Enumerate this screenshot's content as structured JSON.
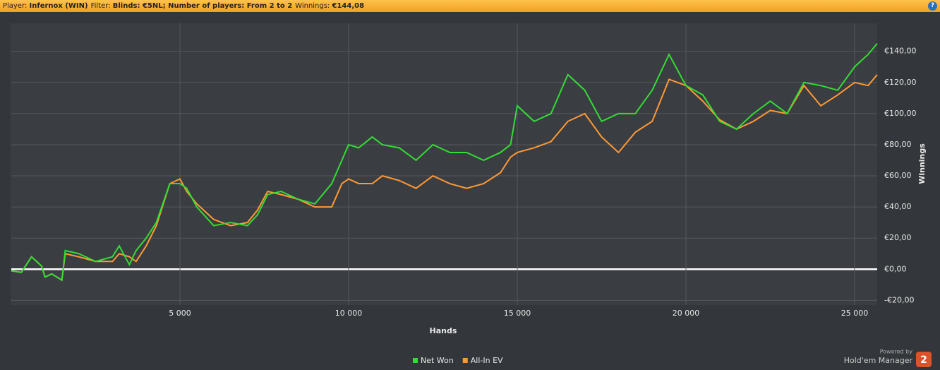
{
  "header": {
    "items": [
      {
        "label": "Player:",
        "value": "Infernox (WIN)"
      },
      {
        "label": "Filter:",
        "value": "Blinds: €5NL; Number of players: From 2 to 2"
      },
      {
        "label": "Winnings:",
        "value": "€144,08"
      }
    ]
  },
  "chart_data": {
    "type": "line",
    "x_label": "Hands",
    "y_label": "Winnings",
    "x": [
      0,
      300,
      600,
      900,
      1000,
      1200,
      1500,
      1600,
      2000,
      2500,
      3000,
      3200,
      3500,
      3700,
      4000,
      4300,
      4700,
      5000,
      5200,
      5500,
      6000,
      6500,
      7000,
      7300,
      7600,
      8000,
      8500,
      9000,
      9500,
      9800,
      10000,
      10300,
      10700,
      11000,
      11500,
      12000,
      12500,
      13000,
      13500,
      14000,
      14500,
      14800,
      15000,
      15500,
      16000,
      16500,
      17000,
      17500,
      18000,
      18500,
      19000,
      19500,
      20000,
      20500,
      21000,
      21500,
      22000,
      22500,
      23000,
      23500,
      24000,
      24500,
      25000,
      25400,
      25670
    ],
    "series": [
      {
        "name": "All-In EV",
        "color": "#ff9933",
        "values": [
          -1,
          -2,
          8,
          2,
          -5,
          -3,
          -7,
          10,
          8,
          5,
          5,
          10,
          8,
          5,
          15,
          28,
          55,
          58,
          50,
          42,
          32,
          28,
          30,
          38,
          50,
          48,
          45,
          40,
          40,
          55,
          58,
          55,
          55,
          60,
          57,
          52,
          60,
          55,
          52,
          55,
          62,
          72,
          75,
          78,
          82,
          95,
          100,
          85,
          75,
          88,
          95,
          122,
          118,
          108,
          96,
          90,
          95,
          102,
          100,
          118,
          105,
          112,
          120,
          118,
          125
        ]
      },
      {
        "name": "Net Won",
        "color": "#33dd33",
        "values": [
          -1,
          -2,
          8,
          2,
          -5,
          -3,
          -7,
          12,
          10,
          5,
          8,
          15,
          3,
          12,
          20,
          30,
          55,
          55,
          52,
          40,
          28,
          30,
          28,
          35,
          48,
          50,
          45,
          42,
          55,
          70,
          80,
          78,
          85,
          80,
          78,
          70,
          80,
          75,
          75,
          70,
          75,
          80,
          105,
          95,
          100,
          125,
          115,
          95,
          100,
          100,
          115,
          138,
          118,
          112,
          95,
          90,
          100,
          108,
          100,
          120,
          118,
          115,
          130,
          138,
          145
        ]
      }
    ],
    "xlim": [
      0,
      25670
    ],
    "ylim": [
      -23,
      158
    ],
    "xticks": [
      {
        "value": 5000,
        "label": "5 000"
      },
      {
        "value": 10000,
        "label": "10 000"
      },
      {
        "value": 15000,
        "label": "15 000"
      },
      {
        "value": 20000,
        "label": "20 000"
      },
      {
        "value": 25000,
        "label": "25 000"
      }
    ],
    "yticks": [
      {
        "value": -20,
        "label": "-€20,00"
      },
      {
        "value": 0,
        "label": "€0,00"
      },
      {
        "value": 20,
        "label": "€20,00"
      },
      {
        "value": 40,
        "label": "€40,00"
      },
      {
        "value": 60,
        "label": "€60,00"
      },
      {
        "value": 80,
        "label": "€80,00"
      },
      {
        "value": 100,
        "label": "€100,00"
      },
      {
        "value": 120,
        "label": "€120,00"
      },
      {
        "value": 140,
        "label": "€140,00"
      }
    ],
    "grid": true,
    "legend": "bottom"
  },
  "branding": {
    "powered": "Powered by",
    "product": "Hold'em Manager",
    "logo": "2"
  }
}
